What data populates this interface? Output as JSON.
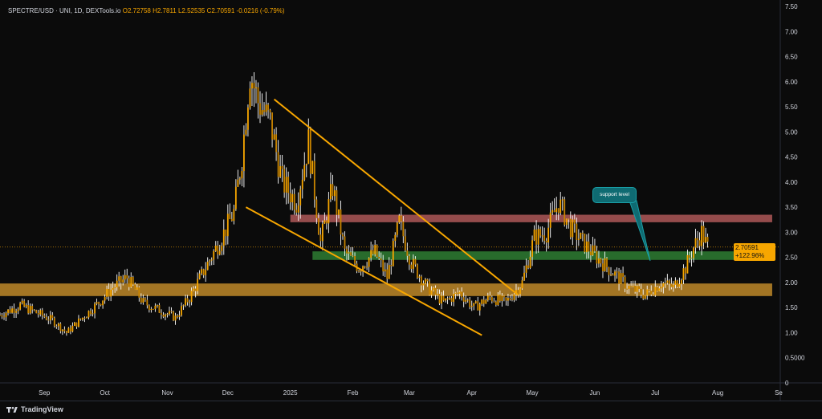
{
  "header": {
    "symbol": "SPECTRE/USD · UNI, 1D, DEXTools.io",
    "open": "O2.72758",
    "high": "H2.7811",
    "low": "L2.52535",
    "close": "C2.70591",
    "change": "-0.0216 (-0.79%)"
  },
  "last_price": {
    "price": "2.70591",
    "pct": "+122.96%"
  },
  "annotation": {
    "text": "support level"
  },
  "branding": {
    "logo_text": "TradingView"
  },
  "colors": {
    "background": "#0b0b0b",
    "candle": "#f7a600",
    "wick": "#ffffff",
    "trendline": "#f7a600",
    "resistance_zone": "#b85c5c",
    "support_zone": "#2e7d32",
    "demand_zone": "#c9902a",
    "callout": "#0f6b72"
  },
  "chart_data": {
    "type": "candlestick",
    "y_axis_ticks": [
      "7.50",
      "7.00",
      "6.50",
      "6.00",
      "5.50",
      "5.00",
      "4.50",
      "4.00",
      "3.50",
      "3.00",
      "2.50",
      "2.00",
      "1.50",
      "1.00",
      "0.5000",
      "0"
    ],
    "x_axis_ticks": [
      "Sep",
      "Oct",
      "Nov",
      "Dec",
      "2025",
      "Feb",
      "Mar",
      "Apr",
      "May",
      "Jun",
      "Jul",
      "Aug",
      "Se"
    ],
    "ylim": [
      0,
      7.5
    ],
    "date_range": [
      "2024-08-10",
      "2025-09-01"
    ],
    "price_points": [
      [
        "2024-08-10",
        1.35
      ],
      [
        "2024-08-20",
        1.55
      ],
      [
        "2024-08-28",
        1.4
      ],
      [
        "2024-09-05",
        1.25
      ],
      [
        "2024-09-12",
        1.0
      ],
      [
        "2024-09-20",
        1.3
      ],
      [
        "2024-09-28",
        1.6
      ],
      [
        "2024-10-05",
        1.9
      ],
      [
        "2024-10-12",
        2.1
      ],
      [
        "2024-10-20",
        1.6
      ],
      [
        "2024-10-28",
        1.45
      ],
      [
        "2024-11-05",
        1.3
      ],
      [
        "2024-11-12",
        1.7
      ],
      [
        "2024-11-20",
        2.3
      ],
      [
        "2024-11-28",
        2.9
      ],
      [
        "2024-12-04",
        3.4
      ],
      [
        "2024-12-08",
        4.5
      ],
      [
        "2024-12-12",
        6.2
      ],
      [
        "2024-12-16",
        5.6
      ],
      [
        "2024-12-22",
        5.2
      ],
      [
        "2024-12-28",
        4.0
      ],
      [
        "2025-01-04",
        3.6
      ],
      [
        "2025-01-10",
        4.8
      ],
      [
        "2025-01-16",
        2.8
      ],
      [
        "2025-01-22",
        3.9
      ],
      [
        "2025-01-28",
        2.6
      ],
      [
        "2025-02-04",
        2.3
      ],
      [
        "2025-02-12",
        2.6
      ],
      [
        "2025-02-18",
        2.1
      ],
      [
        "2025-02-24",
        3.2
      ],
      [
        "2025-03-02",
        2.4
      ],
      [
        "2025-03-10",
        1.9
      ],
      [
        "2025-03-18",
        1.6
      ],
      [
        "2025-03-26",
        1.8
      ],
      [
        "2025-04-02",
        1.5
      ],
      [
        "2025-04-10",
        1.7
      ],
      [
        "2025-04-18",
        1.6
      ],
      [
        "2025-04-26",
        2.0
      ],
      [
        "2025-05-02",
        2.9
      ],
      [
        "2025-05-08",
        3.0
      ],
      [
        "2025-05-14",
        3.6
      ],
      [
        "2025-05-20",
        3.1
      ],
      [
        "2025-05-26",
        2.8
      ],
      [
        "2025-06-02",
        2.5
      ],
      [
        "2025-06-10",
        2.2
      ],
      [
        "2025-06-18",
        1.9
      ],
      [
        "2025-06-26",
        1.75
      ],
      [
        "2025-07-04",
        2.0
      ],
      [
        "2025-07-10",
        1.9
      ],
      [
        "2025-07-16",
        2.3
      ],
      [
        "2025-07-20",
        2.7
      ],
      [
        "2025-07-24",
        3.0
      ],
      [
        "2025-07-27",
        2.7
      ]
    ],
    "zones": [
      {
        "type": "resistance",
        "from": "2025-01-01",
        "to": "2025-08-28",
        "y_low": 3.2,
        "y_high": 3.35
      },
      {
        "type": "support",
        "from": "2025-01-12",
        "to": "2025-08-28",
        "y_low": 2.45,
        "y_high": 2.62
      },
      {
        "type": "demand",
        "from": "2024-08-10",
        "to": "2025-08-28",
        "y_low": 1.73,
        "y_high": 1.98
      }
    ],
    "trendlines": [
      {
        "from": [
          "2024-12-24",
          5.65
        ],
        "to": [
          "2025-04-24",
          1.75
        ]
      },
      {
        "from": [
          "2024-12-10",
          3.5
        ],
        "to": [
          "2025-04-06",
          0.95
        ]
      }
    ],
    "current_price": 2.70591,
    "grid": false
  }
}
